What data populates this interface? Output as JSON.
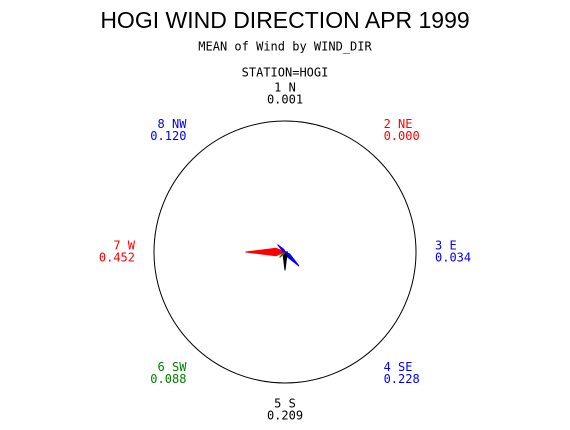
{
  "chart_data": {
    "type": "star",
    "title": "HOGI WIND DIRECTION APR 1999",
    "subtitle": "MEAN of Wind by WIND_DIR",
    "group_label": "STATION=HOGI",
    "categories": [
      "1 N",
      "2 NE",
      "3 E",
      "4 SE",
      "5 S",
      "6 SW",
      "7 W",
      "8 NW"
    ],
    "values": [
      0.001,
      0.0,
      0.034,
      0.228,
      0.209,
      0.088,
      0.452,
      0.12
    ],
    "value_labels": [
      "0.001",
      "0.000",
      "0.034",
      "0.228",
      "0.209",
      "0.088",
      "0.452",
      "0.120"
    ],
    "colors": [
      "#000000",
      "#ff0000",
      "#0000ff",
      "#0000ff",
      "#000000",
      "#008000",
      "#ff0000",
      "#0000ff"
    ],
    "rlim": [
      0,
      1.5
    ]
  }
}
